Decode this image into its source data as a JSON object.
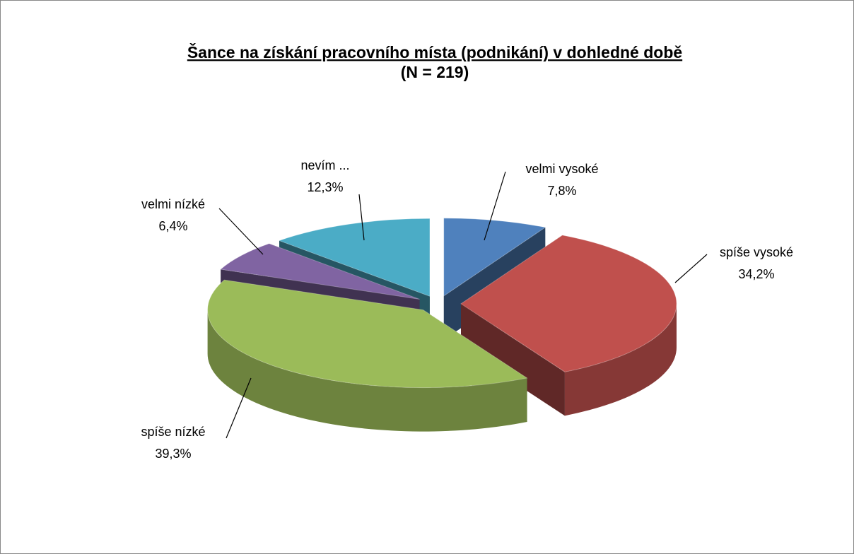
{
  "chart_data": {
    "type": "pie3d",
    "title": "Šance na získání pracovního místa (podnikání) v dohledné době",
    "subtitle": "(N = 219)",
    "categories": [
      "velmi vysoké",
      "spíše vysoké",
      "spíše nízké",
      "velmi nízké",
      "nevím ..."
    ],
    "values": [
      7.8,
      34.2,
      39.3,
      6.4,
      12.3
    ],
    "value_labels": [
      "7,8%",
      "34,2%",
      "39,3%",
      "6,4%",
      "12,3%"
    ],
    "colors": [
      "#4f81bd",
      "#c0504d",
      "#9bbb59",
      "#8064a2",
      "#4bacc6"
    ]
  }
}
